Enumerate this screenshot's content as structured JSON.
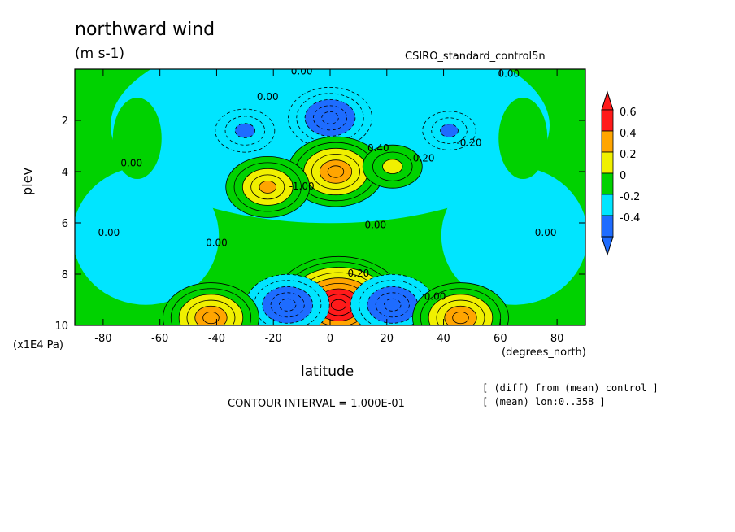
{
  "chart_data": {
    "type": "heatmap",
    "title": "northward wind",
    "units": "(m s-1)",
    "dataset": "CSIRO_standard_control5n",
    "xlabel": "latitude",
    "x_units": "(degrees_north)",
    "ylabel": "plev",
    "y_units": "(x1E4 Pa)",
    "xlim": [
      -90,
      90
    ],
    "ylim": [
      10,
      0
    ],
    "x_ticks": [
      -80,
      -60,
      -40,
      -20,
      0,
      20,
      40,
      60,
      80
    ],
    "y_ticks": [
      2,
      4,
      6,
      8,
      10
    ],
    "contour_interval": "CONTOUR INTERVAL = 1.000E-01",
    "notes": [
      "[ (diff) from (mean) control ]",
      "[ (mean) lon:0..358 ]"
    ],
    "colorbar": {
      "labels": [
        "0.6",
        "0.4",
        "0.2",
        "0",
        "-0.2",
        "-0.4"
      ],
      "levels": [
        -0.4,
        -0.2,
        0,
        0.2,
        0.4,
        0.6
      ],
      "colors": [
        "#1e6cff",
        "#00e5ff",
        "#00d200",
        "#f0f000",
        "#ffa500",
        "#ff1a1a"
      ]
    },
    "contour_labels": [
      {
        "text": "0.00",
        "lat": -70,
        "plev": 3.8
      },
      {
        "text": "0.00",
        "lat": -78,
        "plev": 6.5
      },
      {
        "text": "0.00",
        "lat": -40,
        "plev": 6.9
      },
      {
        "text": "0.00",
        "lat": -22,
        "plev": 1.2
      },
      {
        "text": "0.00",
        "lat": -10,
        "plev": 0.2
      },
      {
        "text": "0.00",
        "lat": 63,
        "plev": 0.3
      },
      {
        "text": "0.00",
        "lat": 76,
        "plev": 6.5
      },
      {
        "text": "-0.20",
        "lat": 49,
        "plev": 3.0
      },
      {
        "text": "0.20",
        "lat": 33,
        "plev": 3.6
      },
      {
        "text": "0.40",
        "lat": 17,
        "plev": 3.2
      },
      {
        "text": "-1.00",
        "lat": -10,
        "plev": 4.7
      },
      {
        "text": "0.00",
        "lat": 16,
        "plev": 6.2
      },
      {
        "text": "0.20",
        "lat": 10,
        "plev": 8.1
      },
      {
        "text": "0.00",
        "lat": 37,
        "plev": 9.0
      }
    ],
    "features": [
      {
        "sign": "negative",
        "value": -0.5,
        "lat": 0,
        "plev": 1.9
      },
      {
        "sign": "positive",
        "value": 0.6,
        "lat": 2,
        "plev": 4.0
      },
      {
        "sign": "positive",
        "value": 0.5,
        "lat": -22,
        "plev": 4.6
      },
      {
        "sign": "positive",
        "value": 0.3,
        "lat": 22,
        "plev": 3.8
      },
      {
        "sign": "negative",
        "value": -0.25,
        "lat": 42,
        "plev": 2.4
      },
      {
        "sign": "negative",
        "value": -0.3,
        "lat": -30,
        "plev": 2.4
      },
      {
        "sign": "positive",
        "value": 0.9,
        "lat": 3,
        "plev": 9.2
      },
      {
        "sign": "negative",
        "value": -0.5,
        "lat": -15,
        "plev": 9.2
      },
      {
        "sign": "negative",
        "value": -0.5,
        "lat": 22,
        "plev": 9.2
      },
      {
        "sign": "positive",
        "value": 0.6,
        "lat": -42,
        "plev": 9.7
      },
      {
        "sign": "positive",
        "value": 0.6,
        "lat": 46,
        "plev": 9.7
      }
    ]
  }
}
